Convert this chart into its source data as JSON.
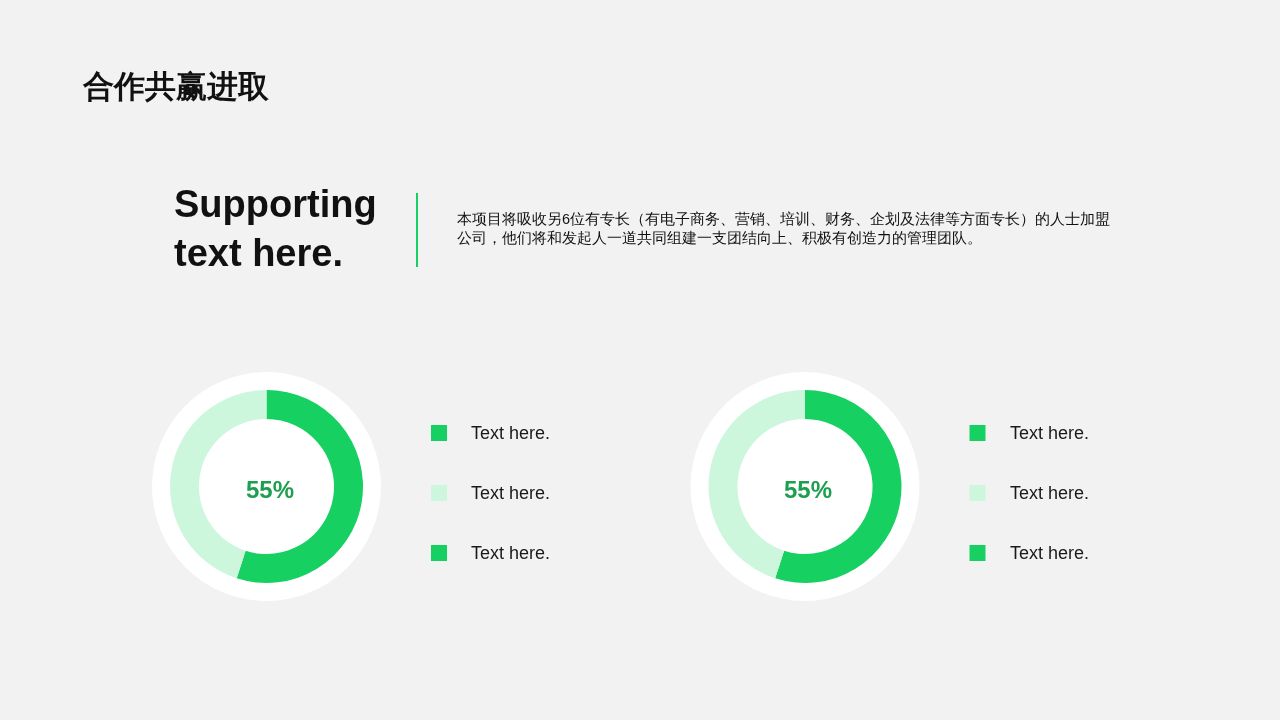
{
  "chart_data": [
    {
      "type": "other",
      "title": "合作共赢进取",
      "annotations": [
        "Supporting text here.",
        "本项目将吸收另6位有专长（有电子商务、营销、培训、财务、企划及法律等方面专长）的人士加盟公司，他们将和发起人一道共同组建一支团结向上、积极有创造力的管理团队。"
      ]
    },
    {
      "type": "donut",
      "categories": [
        "Text here.",
        "Text here.",
        "Text here."
      ],
      "values": [
        55,
        45,
        null
      ],
      "colors": [
        "#17d062",
        "#ccf7dd",
        "#17d062"
      ],
      "annotations": [
        "55%"
      ],
      "legend": "right"
    },
    {
      "type": "donut",
      "categories": [
        "Text here.",
        "Text here.",
        "Text here."
      ],
      "values": [
        55,
        45,
        null
      ],
      "colors": [
        "#17d062",
        "#ccf7dd",
        "#17d062"
      ],
      "annotations": [
        "55%"
      ],
      "legend": "right"
    }
  ]
}
